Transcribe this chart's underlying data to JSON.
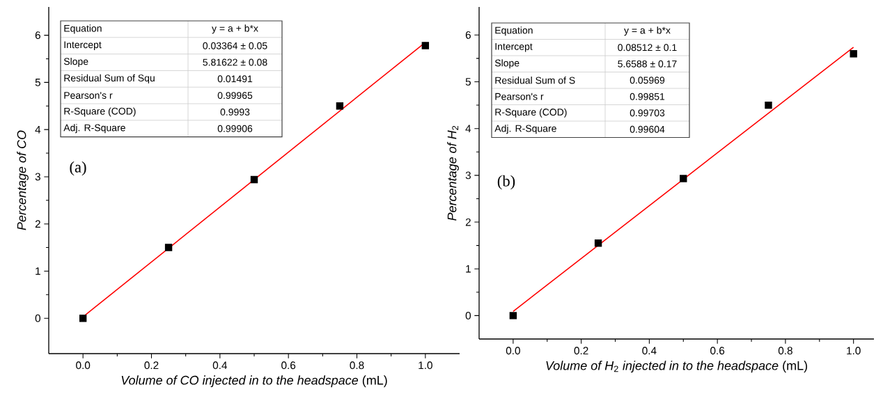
{
  "chart_data": [
    {
      "type": "scatter",
      "xlabel": "*Volume of CO injected in to the headspace* (mL)",
      "ylabel": "*Percentage of CO*",
      "xlim": [
        -0.1,
        1.1
      ],
      "ylim": [
        -0.75,
        6.6
      ],
      "xticks": [
        {
          "value": 0,
          "label": "0.0"
        },
        {
          "value": 0.2,
          "label": "0.2"
        },
        {
          "value": 0.4,
          "label": "0.4"
        },
        {
          "value": 0.6,
          "label": "0.6"
        },
        {
          "value": 0.8,
          "label": "0.8"
        },
        {
          "value": 1,
          "label": "1.0"
        }
      ],
      "yticks": [
        0,
        1,
        2,
        3,
        4,
        5,
        6
      ],
      "grid": false,
      "series": [
        {
          "marker": "square",
          "color": "#000000",
          "x": [
            0,
            0.25,
            0.5,
            0.75,
            1
          ],
          "values": [
            0,
            1.5,
            2.94,
            4.5,
            5.78
          ]
        },
        {
          "type": "line",
          "color": "#ff0000",
          "x": [
            0,
            1
          ],
          "values": [
            0.03,
            5.85
          ]
        }
      ],
      "annotations": [
        "Equation",
        "y = a + b*x",
        "Intercept",
        "0.03364 ± 0.05",
        "Slope",
        "5.81622 ± 0.08",
        "Residual Sum of Squ",
        "0.01491",
        "Pearson's r",
        "0.99965",
        "R-Square (COD)",
        "0.9993",
        "Adj. R-Square",
        "0.99906",
        "(a)"
      ]
    },
    {
      "type": "scatter",
      "xlabel": "*Volume of H*$_{2}$ *injected in to the headspace* (mL)",
      "ylabel": "*Percentage of H*$_{2}$",
      "xlim": [
        -0.1,
        1.06
      ],
      "ylim": [
        -0.5,
        6.6
      ],
      "xticks": [
        {
          "value": 0,
          "label": "0.0"
        },
        {
          "value": 0.2,
          "label": "0.2"
        },
        {
          "value": 0.4,
          "label": "0.4"
        },
        {
          "value": 0.6,
          "label": "0.6"
        },
        {
          "value": 0.8,
          "label": "0.8"
        },
        {
          "value": 1,
          "label": "1.0"
        }
      ],
      "yticks": [
        0,
        1,
        2,
        3,
        4,
        5,
        6
      ],
      "grid": false,
      "series": [
        {
          "marker": "square",
          "color": "#000000",
          "x": [
            0,
            0.25,
            0.5,
            0.75,
            1
          ],
          "values": [
            0,
            1.55,
            2.93,
            4.5,
            5.6
          ]
        },
        {
          "type": "line",
          "color": "#ff0000",
          "x": [
            0,
            1
          ],
          "values": [
            0.09,
            5.74
          ]
        }
      ],
      "annotations": [
        "Equation",
        "y = a + b*x",
        "Intercept",
        "0.08512 ± 0.1",
        "Slope",
        "5.6588 ± 0.17",
        "Residual Sum of S",
        "0.05969",
        "Pearson's r",
        "0.99851",
        "R-Square (COD)",
        "0.99703",
        "Adj. R-Square",
        "0.99604",
        "(b)"
      ]
    }
  ]
}
